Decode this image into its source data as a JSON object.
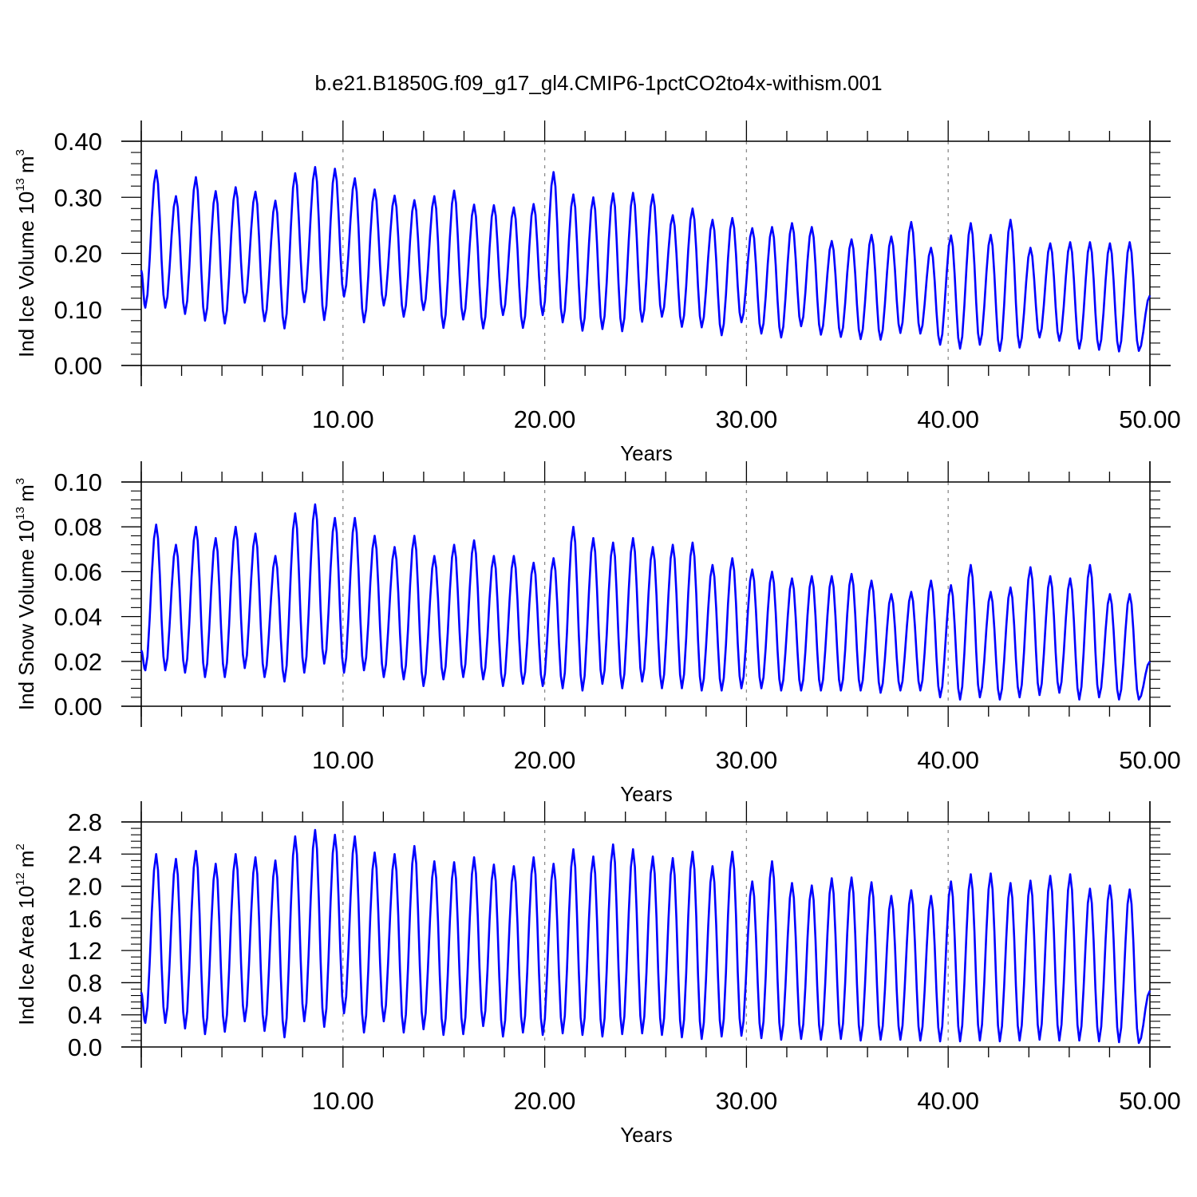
{
  "figure": {
    "title": "b.e21.B1850G.f09_g17_gl4.CMIP6-1pctCO2to4x-withism.001"
  },
  "chart_data": [
    {
      "type": "line",
      "title": "",
      "xlabel": "Years",
      "ylabel": "Ind Ice Volume 10",
      "ylabel_exp": "13",
      "ylabel_unit": "m",
      "ylabel_unit_exp": "3",
      "xlim": [
        0,
        50
      ],
      "ylim": [
        0,
        0.4
      ],
      "xticks": [
        10,
        20,
        30,
        40,
        50
      ],
      "xtick_labels": [
        "10.00",
        "20.00",
        "30.00",
        "40.00",
        "50.00"
      ],
      "yticks": [
        0,
        0.1,
        0.2,
        0.3,
        0.4
      ],
      "ytick_labels": [
        "0.00",
        "0.10",
        "0.20",
        "0.30",
        "0.40"
      ],
      "grid": "vertical dashed at x ticks",
      "line_color": "#0000ff",
      "series": [
        {
          "peak_x": [
            0.74,
            1.72,
            2.71,
            3.69,
            4.68,
            5.66,
            6.65,
            7.63,
            8.62,
            9.6,
            10.59,
            11.57,
            12.56,
            13.54,
            14.53,
            15.51,
            16.5,
            17.48,
            18.47,
            19.45,
            20.44,
            21.42,
            22.41,
            23.39,
            24.38,
            25.36,
            26.35,
            27.33,
            28.32,
            29.3,
            30.29,
            31.27,
            32.26,
            33.24,
            34.23,
            35.21,
            36.2,
            37.18,
            38.17,
            39.15,
            40.14,
            41.12,
            42.11,
            43.09,
            44.08,
            45.06,
            46.05,
            47.03,
            48.02,
            49.0
          ],
          "peaks": [
            0.348,
            0.302,
            0.336,
            0.311,
            0.318,
            0.31,
            0.294,
            0.343,
            0.354,
            0.351,
            0.334,
            0.314,
            0.303,
            0.295,
            0.302,
            0.312,
            0.287,
            0.286,
            0.282,
            0.288,
            0.345,
            0.305,
            0.3,
            0.307,
            0.308,
            0.305,
            0.268,
            0.28,
            0.26,
            0.263,
            0.245,
            0.247,
            0.254,
            0.247,
            0.222,
            0.225,
            0.233,
            0.23,
            0.256,
            0.21,
            0.232,
            0.254,
            0.233,
            0.26,
            0.21,
            0.218,
            0.22,
            0.22,
            0.218,
            0.22
          ],
          "troughs": [
            0.17,
            0.103,
            0.092,
            0.08,
            0.075,
            0.112,
            0.079,
            0.066,
            0.113,
            0.081,
            0.123,
            0.077,
            0.107,
            0.087,
            0.099,
            0.067,
            0.082,
            0.066,
            0.09,
            0.067,
            0.09,
            0.077,
            0.062,
            0.065,
            0.061,
            0.078,
            0.087,
            0.069,
            0.068,
            0.054,
            0.077,
            0.057,
            0.05,
            0.07,
            0.055,
            0.051,
            0.047,
            0.046,
            0.058,
            0.057,
            0.037,
            0.03,
            0.037,
            0.026,
            0.032,
            0.05,
            0.044,
            0.03,
            0.028,
            0.025,
            0.026,
            0.125
          ]
        }
      ]
    },
    {
      "type": "line",
      "title": "",
      "xlabel": "Years",
      "ylabel": "Ind Snow Volume 10",
      "ylabel_exp": "13",
      "ylabel_unit": "m",
      "ylabel_unit_exp": "3",
      "xlim": [
        0,
        50
      ],
      "ylim": [
        0,
        0.1
      ],
      "xticks": [
        10,
        20,
        30,
        40,
        50
      ],
      "xtick_labels": [
        "10.00",
        "20.00",
        "30.00",
        "40.00",
        "50.00"
      ],
      "yticks": [
        0,
        0.02,
        0.04,
        0.06,
        0.08,
        0.1
      ],
      "ytick_labels": [
        "0.00",
        "0.02",
        "0.04",
        "0.06",
        "0.08",
        "0.10"
      ],
      "grid": "vertical dashed at x ticks",
      "line_color": "#0000ff",
      "series": [
        {
          "peak_x": [
            0.74,
            1.72,
            2.71,
            3.69,
            4.68,
            5.66,
            6.65,
            7.63,
            8.62,
            9.6,
            10.59,
            11.57,
            12.56,
            13.54,
            14.53,
            15.51,
            16.5,
            17.48,
            18.47,
            19.45,
            20.44,
            21.42,
            22.41,
            23.39,
            24.38,
            25.36,
            26.35,
            27.33,
            28.32,
            29.3,
            30.29,
            31.27,
            32.26,
            33.24,
            34.23,
            35.21,
            36.2,
            37.18,
            38.17,
            39.15,
            40.14,
            41.12,
            42.11,
            43.09,
            44.08,
            45.06,
            46.05,
            47.03,
            48.02,
            49.0
          ],
          "peaks": [
            0.081,
            0.072,
            0.08,
            0.075,
            0.08,
            0.077,
            0.067,
            0.086,
            0.09,
            0.084,
            0.084,
            0.076,
            0.071,
            0.076,
            0.067,
            0.072,
            0.074,
            0.067,
            0.067,
            0.064,
            0.066,
            0.08,
            0.075,
            0.073,
            0.075,
            0.071,
            0.072,
            0.073,
            0.063,
            0.066,
            0.061,
            0.06,
            0.057,
            0.058,
            0.058,
            0.059,
            0.056,
            0.05,
            0.051,
            0.056,
            0.054,
            0.063,
            0.051,
            0.053,
            0.062,
            0.058,
            0.057,
            0.063,
            0.05,
            0.05
          ],
          "troughs": [
            0.025,
            0.016,
            0.015,
            0.013,
            0.013,
            0.017,
            0.013,
            0.011,
            0.015,
            0.019,
            0.015,
            0.016,
            0.013,
            0.012,
            0.009,
            0.012,
            0.013,
            0.012,
            0.009,
            0.01,
            0.009,
            0.008,
            0.007,
            0.01,
            0.008,
            0.011,
            0.008,
            0.008,
            0.007,
            0.007,
            0.008,
            0.008,
            0.007,
            0.007,
            0.007,
            0.007,
            0.007,
            0.006,
            0.007,
            0.007,
            0.004,
            0.003,
            0.004,
            0.003,
            0.004,
            0.005,
            0.006,
            0.003,
            0.004,
            0.003,
            0.003,
            0.02
          ]
        }
      ]
    },
    {
      "type": "line",
      "title": "",
      "xlabel": "Years",
      "ylabel": "Ind Ice Area 10",
      "ylabel_exp": "12",
      "ylabel_unit": "m",
      "ylabel_unit_exp": "2",
      "xlim": [
        0,
        50
      ],
      "ylim": [
        0,
        2.8
      ],
      "xticks": [
        10,
        20,
        30,
        40,
        50
      ],
      "xtick_labels": [
        "10.00",
        "20.00",
        "30.00",
        "40.00",
        "50.00"
      ],
      "yticks": [
        0,
        0.4,
        0.8,
        1.2,
        1.6,
        2.0,
        2.4,
        2.8
      ],
      "ytick_labels": [
        "0.0",
        "0.4",
        "0.8",
        "1.2",
        "1.6",
        "2.0",
        "2.4",
        "2.8"
      ],
      "grid": "vertical dashed at x ticks",
      "line_color": "#0000ff",
      "series": [
        {
          "peak_x": [
            0.74,
            1.72,
            2.71,
            3.69,
            4.68,
            5.66,
            6.65,
            7.63,
            8.62,
            9.6,
            10.59,
            11.57,
            12.56,
            13.54,
            14.53,
            15.51,
            16.5,
            17.48,
            18.47,
            19.45,
            20.44,
            21.42,
            22.41,
            23.39,
            24.38,
            25.36,
            26.35,
            27.33,
            28.32,
            29.3,
            30.29,
            31.27,
            32.26,
            33.24,
            34.23,
            35.21,
            36.2,
            37.18,
            38.17,
            39.15,
            40.14,
            41.12,
            42.11,
            43.09,
            44.08,
            45.06,
            46.05,
            47.03,
            48.02,
            49.0
          ],
          "peaks": [
            2.4,
            2.34,
            2.44,
            2.28,
            2.4,
            2.36,
            2.32,
            2.62,
            2.7,
            2.64,
            2.62,
            2.42,
            2.4,
            2.5,
            2.31,
            2.3,
            2.36,
            2.27,
            2.25,
            2.36,
            2.28,
            2.46,
            2.37,
            2.52,
            2.46,
            2.37,
            2.35,
            2.43,
            2.25,
            2.43,
            2.06,
            2.31,
            2.04,
            2.01,
            2.1,
            2.11,
            2.05,
            1.88,
            1.95,
            1.88,
            2.06,
            2.15,
            2.16,
            2.04,
            2.07,
            2.13,
            2.15,
            1.97,
            2.01,
            1.96
          ],
          "troughs": [
            0.68,
            0.3,
            0.23,
            0.16,
            0.19,
            0.32,
            0.2,
            0.12,
            0.32,
            0.25,
            0.42,
            0.18,
            0.32,
            0.18,
            0.22,
            0.15,
            0.16,
            0.26,
            0.13,
            0.18,
            0.15,
            0.17,
            0.15,
            0.13,
            0.16,
            0.17,
            0.15,
            0.12,
            0.1,
            0.13,
            0.14,
            0.11,
            0.09,
            0.1,
            0.09,
            0.1,
            0.08,
            0.09,
            0.09,
            0.08,
            0.07,
            0.07,
            0.08,
            0.07,
            0.08,
            0.09,
            0.08,
            0.08,
            0.07,
            0.06,
            0.05,
            0.7
          ]
        }
      ]
    }
  ]
}
